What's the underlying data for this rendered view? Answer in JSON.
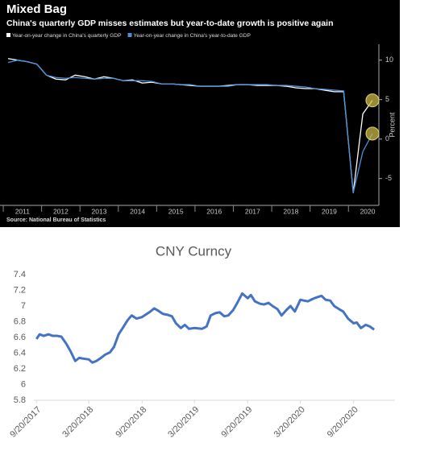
{
  "chart_data": [
    {
      "type": "line",
      "title": "Mixed Bag",
      "subtitle": "China's quarterly GDP misses estimates but year-to-date growth is positive again",
      "y_label": "Percent",
      "source": "Source: National Bureau of Statistics",
      "categories": [
        "2011",
        null,
        null,
        null,
        "2012",
        null,
        null,
        null,
        "2013",
        null,
        null,
        null,
        "2014",
        null,
        null,
        null,
        "2015",
        null,
        null,
        null,
        "2016",
        null,
        null,
        null,
        "2017",
        null,
        null,
        null,
        "2018",
        null,
        null,
        null,
        "2019",
        null,
        null,
        null,
        "2020",
        null,
        null
      ],
      "series": [
        {
          "name": "Year-on-year change in China's quarterly GDP",
          "color": "#ffffff",
          "values": [
            10.2,
            10.0,
            9.8,
            9.5,
            8.1,
            7.6,
            7.5,
            8.1,
            7.9,
            7.6,
            7.9,
            7.7,
            7.4,
            7.5,
            7.1,
            7.2,
            7.0,
            7.0,
            6.9,
            6.8,
            6.7,
            6.7,
            6.7,
            6.8,
            6.9,
            6.9,
            6.8,
            6.8,
            6.8,
            6.7,
            6.5,
            6.4,
            6.4,
            6.2,
            6.0,
            6.0,
            -6.8,
            3.2,
            4.9
          ]
        },
        {
          "name": "Year-on-year change in China's year-to-date GDP",
          "color": "#4a90d9",
          "values": [
            9.7,
            10.0,
            9.8,
            9.5,
            8.1,
            7.8,
            7.7,
            7.8,
            7.7,
            7.6,
            7.7,
            7.7,
            7.4,
            7.4,
            7.4,
            7.3,
            7.0,
            7.0,
            6.9,
            6.9,
            6.7,
            6.7,
            6.7,
            6.7,
            6.9,
            6.9,
            6.9,
            6.9,
            6.8,
            6.8,
            6.7,
            6.6,
            6.4,
            6.3,
            6.2,
            6.1,
            -6.8,
            -1.6,
            0.7
          ]
        }
      ],
      "ylim": [
        -8.4,
        11.5
      ],
      "yticks": [
        -5,
        0,
        5,
        10
      ]
    },
    {
      "type": "line",
      "title": "CNY Curncy",
      "x": [
        "2017-09-20",
        "2017-10-01",
        "2017-10-15",
        "2017-11-01",
        "2017-11-15",
        "2017-12-01",
        "2017-12-15",
        "2018-01-01",
        "2018-01-15",
        "2018-02-01",
        "2018-02-15",
        "2018-03-01",
        "2018-03-20",
        "2018-04-01",
        "2018-04-15",
        "2018-05-01",
        "2018-05-15",
        "2018-06-01",
        "2018-06-15",
        "2018-07-01",
        "2018-07-15",
        "2018-08-01",
        "2018-08-15",
        "2018-09-01",
        "2018-09-20",
        "2018-10-15",
        "2018-11-01",
        "2018-11-15",
        "2018-12-01",
        "2018-12-15",
        "2019-01-01",
        "2019-01-15",
        "2019-02-01",
        "2019-02-15",
        "2019-03-01",
        "2019-03-20",
        "2019-04-15",
        "2019-05-01",
        "2019-05-15",
        "2019-06-01",
        "2019-06-15",
        "2019-07-01",
        "2019-07-15",
        "2019-08-01",
        "2019-08-15",
        "2019-09-01",
        "2019-09-20",
        "2019-10-01",
        "2019-10-15",
        "2019-11-01",
        "2019-11-15",
        "2019-12-01",
        "2019-12-15",
        "2020-01-01",
        "2020-01-15",
        "2020-02-01",
        "2020-02-15",
        "2020-03-01",
        "2020-03-20",
        "2020-04-01",
        "2020-04-15",
        "2020-05-01",
        "2020-05-15",
        "2020-06-01",
        "2020-06-15",
        "2020-07-01",
        "2020-07-15",
        "2020-08-01",
        "2020-08-15",
        "2020-09-01",
        "2020-09-20",
        "2020-10-01",
        "2020-10-15",
        "2020-11-01",
        "2020-11-15",
        "2020-11-30"
      ],
      "series": [
        {
          "color": "#4472c4",
          "values": [
            6.58,
            6.64,
            6.62,
            6.64,
            6.62,
            6.62,
            6.61,
            6.52,
            6.43,
            6.3,
            6.34,
            6.33,
            6.32,
            6.28,
            6.3,
            6.34,
            6.38,
            6.41,
            6.48,
            6.64,
            6.72,
            6.82,
            6.88,
            6.84,
            6.86,
            6.92,
            6.97,
            6.94,
            6.9,
            6.89,
            6.87,
            6.78,
            6.72,
            6.76,
            6.71,
            6.72,
            6.71,
            6.74,
            6.88,
            6.91,
            6.92,
            6.87,
            6.88,
            6.95,
            7.04,
            7.16,
            7.1,
            7.14,
            7.06,
            7.03,
            7.02,
            7.04,
            7.0,
            6.96,
            6.88,
            6.95,
            7.0,
            6.93,
            7.08,
            7.07,
            7.06,
            7.09,
            7.11,
            7.13,
            7.08,
            7.07,
            7.0,
            6.96,
            6.93,
            6.84,
            6.78,
            6.79,
            6.72,
            6.76,
            6.74,
            6.7
          ]
        }
      ],
      "xlim": [
        "2017-09-11",
        "2021-02-10"
      ],
      "xticks": [
        {
          "value": "2017-09-20",
          "label": "9/20/2017"
        },
        {
          "value": "2018-03-20",
          "label": "3/20/2018"
        },
        {
          "value": "2018-09-20",
          "label": "9/20/2018"
        },
        {
          "value": "2019-03-20",
          "label": "3/20/2019"
        },
        {
          "value": "2019-09-20",
          "label": "9/20/2019"
        },
        {
          "value": "2020-03-20",
          "label": "3/20/2020"
        },
        {
          "value": "2020-09-20",
          "label": "9/20/2020"
        }
      ],
      "ylim": [
        5.8,
        7.4
      ],
      "yticks": [
        5.8,
        6,
        6.2,
        6.4,
        6.6,
        6.8,
        7,
        7.2,
        7.4
      ]
    }
  ]
}
